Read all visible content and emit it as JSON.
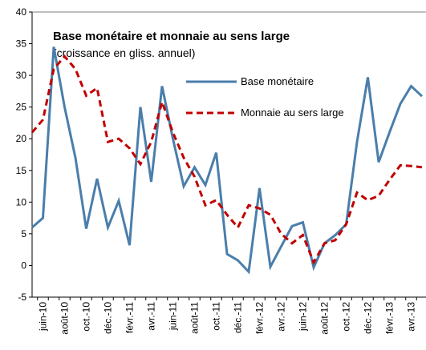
{
  "chart_data": {
    "type": "line",
    "title": "Base monétaire et monnaie au sens large",
    "subtitle": "(croissance en gliss. annuel)",
    "categories": [
      null,
      "juin-10",
      null,
      "août-10",
      null,
      "oct.-10",
      null,
      "déc.-10",
      null,
      "févr.-11",
      null,
      "avr.-11",
      null,
      "juin-11",
      null,
      "août-11",
      null,
      "oct.-11",
      null,
      "déc.-11",
      null,
      "févr.-12",
      null,
      "avr.-12",
      null,
      "juin-12",
      null,
      "août-12",
      null,
      "oct.-12",
      null,
      "déc.-12",
      null,
      "févr.-13",
      null,
      "avr.-13",
      null
    ],
    "series": [
      {
        "name": "Base monétaire",
        "color": "#4a7eab",
        "dash": false,
        "values": [
          6,
          7.5,
          34.5,
          25,
          17,
          5.8,
          13.7,
          6,
          10.2,
          3.2,
          25,
          13.2,
          28.3,
          20,
          12.5,
          15.5,
          12.7,
          17.8,
          1.8,
          0.8,
          -1,
          12.2,
          -0.2,
          3,
          6.2,
          6.8,
          -0.3,
          3.5,
          4.8,
          6.5,
          19.5,
          29.7,
          16.3,
          21,
          25.5,
          28.3,
          26.7
        ]
      },
      {
        "name": "Monnaie au sers large",
        "color": "#c00000",
        "dash": true,
        "values": [
          21,
          23,
          31,
          33,
          31,
          26.8,
          28,
          19.5,
          20,
          18.5,
          16,
          19.5,
          25.8,
          21,
          17,
          14,
          9.5,
          10.3,
          8,
          6,
          9.5,
          9,
          8,
          5,
          3.5,
          4.8,
          0.5,
          3.5,
          4,
          6.5,
          11.5,
          10.3,
          11,
          13.5,
          15.8,
          15.7,
          15.5
        ]
      }
    ],
    "ylim": [
      -5,
      40
    ],
    "yticks": [
      -5,
      0,
      5,
      10,
      15,
      20,
      25,
      30,
      35,
      40
    ],
    "grid": false
  }
}
